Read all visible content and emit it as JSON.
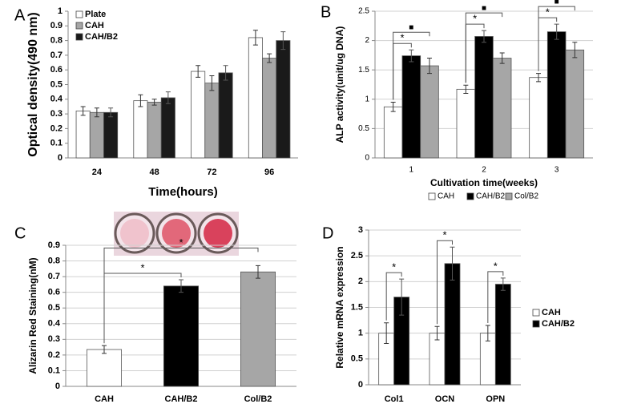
{
  "chart_data": [
    {
      "type": "bar",
      "label": "A",
      "y_label": "Optical density(490 nm)",
      "x_label": "Time(hours)",
      "categories": [
        "24",
        "48",
        "72",
        "96"
      ],
      "series": [
        {
          "name": "Plate",
          "color": "#ffffff",
          "values": [
            0.32,
            0.39,
            0.59,
            0.82
          ],
          "errors": [
            0.03,
            0.04,
            0.04,
            0.05
          ]
        },
        {
          "name": "CAH",
          "color": "#a6a6a6",
          "values": [
            0.31,
            0.38,
            0.51,
            0.68
          ],
          "errors": [
            0.03,
            0.02,
            0.05,
            0.03
          ]
        },
        {
          "name": "CAH/B2",
          "color": "#1a1a1a",
          "values": [
            0.31,
            0.41,
            0.58,
            0.8
          ],
          "errors": [
            0.03,
            0.04,
            0.05,
            0.06
          ]
        }
      ],
      "ylim": [
        0,
        1
      ],
      "yticks": [
        0,
        0.1,
        0.2,
        0.3,
        0.4,
        0.5,
        0.6,
        0.7,
        0.8,
        0.9,
        1
      ],
      "grid": false,
      "legend": "top-left"
    },
    {
      "type": "bar",
      "label": "B",
      "y_label": "ALP activity(unit/ug DNA)",
      "x_label": "Cultivation time(weeks)",
      "categories": [
        "1",
        "2",
        "3"
      ],
      "series": [
        {
          "name": "CAH",
          "color": "#ffffff",
          "values": [
            0.87,
            1.17,
            1.37
          ],
          "errors": [
            0.08,
            0.07,
            0.07
          ]
        },
        {
          "name": "CAH/B2",
          "color": "#000000",
          "values": [
            1.74,
            2.07,
            2.15
          ],
          "errors": [
            0.1,
            0.1,
            0.13
          ]
        },
        {
          "name": "Col/B2",
          "color": "#a6a6a6",
          "values": [
            1.57,
            1.7,
            1.84
          ],
          "errors": [
            0.13,
            0.09,
            0.13
          ]
        }
      ],
      "annotations": [
        "*",
        "■",
        "*",
        "■",
        "*",
        "■"
      ],
      "ylim": [
        0,
        2.5
      ],
      "yticks": [
        0,
        0.5,
        1,
        1.5,
        2,
        2.5
      ],
      "grid": true,
      "legend": "bottom"
    },
    {
      "type": "bar",
      "label": "C",
      "y_label": "Alizarin Red Staining(nM)",
      "categories": [
        "CAH",
        "CAH/B2",
        "Col/B2"
      ],
      "values": [
        0.235,
        0.64,
        0.73
      ],
      "errors": [
        0.025,
        0.04,
        0.04
      ],
      "colors": [
        "#ffffff",
        "#000000",
        "#a6a6a6"
      ],
      "annotations": [
        "*",
        "*"
      ],
      "ylim": [
        0,
        0.9
      ],
      "yticks": [
        0,
        0.1,
        0.2,
        0.3,
        0.4,
        0.5,
        0.6,
        0.7,
        0.8,
        0.9
      ],
      "grid": true
    },
    {
      "type": "bar",
      "label": "D",
      "y_label": "Relative mRNA expression",
      "categories": [
        "Col1",
        "OCN",
        "OPN"
      ],
      "series": [
        {
          "name": "CAH",
          "color": "#ffffff",
          "values": [
            1,
            1,
            1
          ],
          "errors": [
            0.2,
            0.13,
            0.15
          ]
        },
        {
          "name": "CAH/B2",
          "color": "#000000",
          "values": [
            1.7,
            2.35,
            1.95
          ],
          "errors": [
            0.35,
            0.32,
            0.12
          ]
        }
      ],
      "annotations": [
        "*",
        "*",
        "*"
      ],
      "ylim": [
        0,
        3
      ],
      "yticks": [
        0,
        0.5,
        1,
        1.5,
        2,
        2.5,
        3
      ],
      "grid": true,
      "legend": "right"
    }
  ]
}
